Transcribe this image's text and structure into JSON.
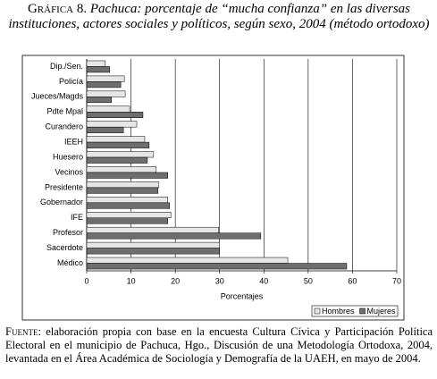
{
  "figure_label": "Gráfica 8.",
  "chart_data": {
    "type": "hbar",
    "title": "Pachuca: porcentaje de “mucha confianza” en las diversas instituciones, actores sociales y políticos, según sexo, 2004 (método ortodoxo)",
    "categories": [
      "Dip./Sen.",
      "Policía",
      "Jueces/Magds",
      "Pdte Mpal",
      "Curandero",
      "IEEH",
      "Huesero",
      "Vecinos",
      "Presidente",
      "Gobernador",
      "IFE",
      "Profesor",
      "Sacerdote",
      "Médico"
    ],
    "series": [
      {
        "name": "Hombres",
        "color": "#e6e6e6",
        "values": [
          4.2,
          8.5,
          8.7,
          9.7,
          11.3,
          13.1,
          15.1,
          15.7,
          16.3,
          18.3,
          19.0,
          29.8,
          30.0,
          45.4
        ]
      },
      {
        "name": "Mujeres",
        "color": "#6e6e6e",
        "values": [
          5.2,
          7.7,
          5.6,
          12.7,
          8.3,
          14.1,
          13.7,
          18.3,
          16.1,
          18.7,
          18.3,
          39.3,
          30.0,
          58.7
        ]
      }
    ],
    "xlabel": "Porcentajes",
    "xlim": [
      0,
      70
    ],
    "xticks": [
      0,
      10,
      20,
      30,
      40,
      50,
      60,
      70
    ],
    "grid": true,
    "legend": "bottom-right"
  },
  "source_label": "Fuente:",
  "source": "elaboración propia con base en la encuesta Cultura Cívica y Participación Política Electoral en el municipio de Pachuca, Hgo., Discusión de una Metodología Ortodoxa, 2004, levantada en el Área Académica de Sociología y Demografía de la UAEH, en mayo de 2004."
}
